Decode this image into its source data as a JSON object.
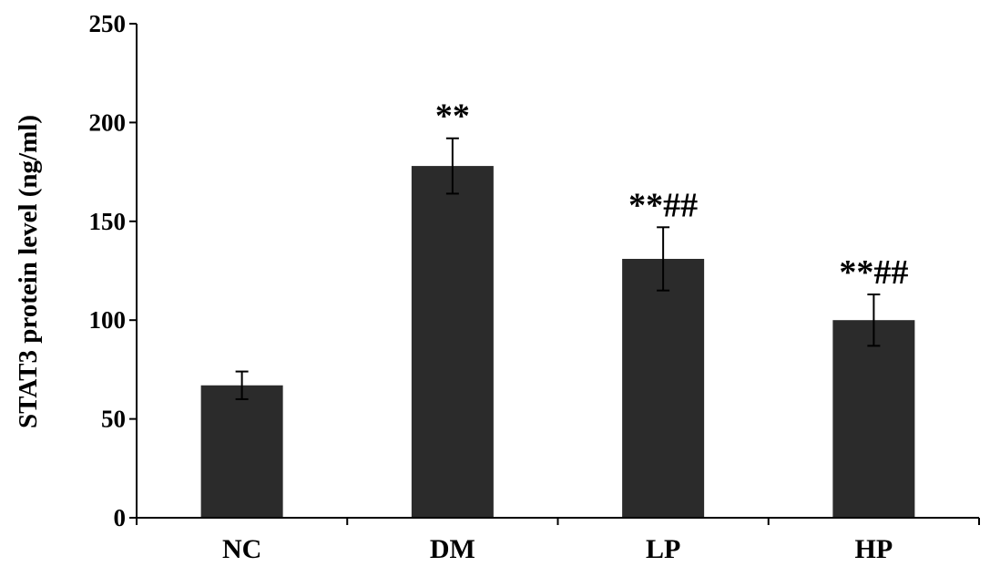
{
  "chart_data": {
    "type": "bar",
    "title": "",
    "xlabel": "",
    "ylabel": "STAT3 protein level (ng/ml)",
    "ylim": [
      0,
      250
    ],
    "yticks": [
      0,
      50,
      100,
      150,
      200,
      250
    ],
    "grid": false,
    "legend": "none",
    "bar_color": "#2b2b2b",
    "categories": [
      "NC",
      "DM",
      "LP",
      "HP"
    ],
    "values": [
      67,
      178,
      131,
      100
    ],
    "errors": [
      7,
      14,
      16,
      13
    ],
    "annotations": [
      "",
      "**",
      "**##",
      "**##"
    ]
  }
}
